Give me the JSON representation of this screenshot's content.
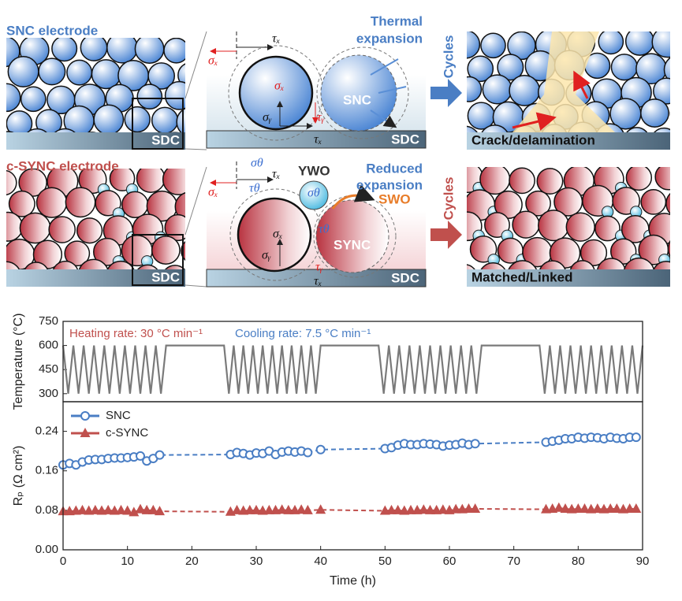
{
  "diagram": {
    "snc_electrode": "SNC electrode",
    "csync_electrode": "c-SYNC electrode",
    "sdc": [
      "SDC",
      "SDC",
      "SDC",
      "SDC"
    ],
    "thermal_expansion": [
      "Thermal",
      "expansion"
    ],
    "reduced_expansion": [
      "Reduced",
      "expansion"
    ],
    "snc": "SNC",
    "sync": "SYNC",
    "ywo": "YWO",
    "swo": "SWO",
    "cycles": [
      "Cycles",
      "Cycles"
    ],
    "crack": "Crack/delamination",
    "matched": "Matched/Linked",
    "symbols_top": [
      "σₓ",
      "τₓ",
      "σₓ",
      "σᵧ",
      "τᵧ",
      "τₓ"
    ],
    "symbols_bottom": [
      "σθ",
      "τθ",
      "σₓ",
      "τₓ",
      "σθ",
      "σₓ",
      "σᵧ",
      "τθ",
      "τᵧ",
      "τₓ"
    ]
  },
  "chart_data": [
    {
      "type": "line",
      "ylabel": "Temperature (°C)",
      "xlim": [
        0,
        90
      ],
      "ylim": [
        250,
        750
      ],
      "yticks": [
        300,
        450,
        600,
        750
      ],
      "annotations": [
        {
          "text": "Heating rate: 30 °C min⁻¹",
          "color": "#c0504d"
        },
        {
          "text": "Cooling rate: 7.5 °C min⁻¹",
          "color": "#4a7ec4"
        }
      ],
      "series": [
        {
          "color": "#7a7a7a",
          "x": [
            0,
            0.8,
            1.6,
            2.4,
            3.2,
            4,
            4.8,
            5.6,
            6.4,
            7.2,
            8,
            8.8,
            9.6,
            10.4,
            11.2,
            12,
            12.8,
            13.6,
            14.4,
            15.2,
            16,
            25,
            25.75,
            26.5,
            27.25,
            28,
            28.75,
            29.5,
            30.25,
            31,
            31.75,
            32.5,
            33.25,
            34,
            34.75,
            35.5,
            36.25,
            37,
            37.75,
            38.5,
            39.25,
            40,
            49,
            49.8,
            50.6,
            51.4,
            52.2,
            53,
            53.8,
            54.6,
            55.4,
            56.2,
            57,
            57.8,
            58.6,
            59.4,
            60.2,
            61,
            61.8,
            62.6,
            63.4,
            64.2,
            65,
            74,
            74.8,
            75.6,
            76.4,
            77.2,
            78,
            78.8,
            79.6,
            80.4,
            81.2,
            82,
            82.8,
            83.6,
            84.4,
            85.2,
            86,
            86.8,
            87.6,
            88.4,
            89.2,
            90
          ],
          "values": [
            600,
            300,
            600,
            300,
            600,
            300,
            600,
            300,
            600,
            300,
            600,
            300,
            600,
            300,
            600,
            300,
            600,
            300,
            600,
            300,
            600,
            600,
            300,
            600,
            300,
            600,
            300,
            600,
            300,
            600,
            300,
            600,
            300,
            600,
            300,
            600,
            300,
            600,
            300,
            600,
            300,
            600,
            600,
            300,
            600,
            300,
            600,
            300,
            600,
            300,
            600,
            300,
            600,
            300,
            600,
            300,
            600,
            300,
            600,
            300,
            600,
            300,
            600,
            600,
            300,
            600,
            300,
            600,
            300,
            600,
            300,
            600,
            300,
            600,
            300,
            600,
            300,
            600,
            300,
            600,
            300,
            600,
            300,
            600
          ]
        }
      ]
    },
    {
      "type": "line",
      "xlabel": "Time (h)",
      "ylabel": "Rₚ (Ω cm²)",
      "xlim": [
        0,
        90
      ],
      "xticks": [
        0,
        10,
        20,
        30,
        40,
        50,
        60,
        70,
        80,
        90
      ],
      "ylim": [
        0,
        0.3
      ],
      "yticks": [
        {
          "value": 0,
          "label": "0.00"
        },
        0.08,
        0.16,
        0.24
      ],
      "legend": "upper left",
      "series": [
        {
          "name": "SNC",
          "color": "#4a7ec4",
          "marker": "circle",
          "linestyle": "dashed",
          "x": [
            0,
            1,
            2,
            3,
            4,
            5,
            6,
            7,
            8,
            9,
            10,
            11,
            12,
            13,
            14,
            15,
            26,
            27,
            28,
            29,
            30,
            31,
            32,
            33,
            34,
            35,
            36,
            37,
            38,
            40,
            50,
            51,
            52,
            53,
            54,
            55,
            56,
            57,
            58,
            59,
            60,
            61,
            62,
            63,
            64,
            75,
            76,
            77,
            78,
            79,
            80,
            81,
            82,
            83,
            84,
            85,
            86,
            87,
            88,
            89
          ],
          "values": [
            0.172,
            0.175,
            0.172,
            0.178,
            0.182,
            0.183,
            0.183,
            0.185,
            0.186,
            0.186,
            0.187,
            0.188,
            0.19,
            0.18,
            0.185,
            0.192,
            0.193,
            0.197,
            0.195,
            0.192,
            0.196,
            0.195,
            0.2,
            0.193,
            0.198,
            0.2,
            0.198,
            0.2,
            0.197,
            0.203,
            0.205,
            0.207,
            0.212,
            0.215,
            0.213,
            0.213,
            0.215,
            0.214,
            0.213,
            0.21,
            0.212,
            0.213,
            0.216,
            0.213,
            0.215,
            0.218,
            0.22,
            0.222,
            0.225,
            0.225,
            0.228,
            0.226,
            0.228,
            0.227,
            0.225,
            0.228,
            0.226,
            0.225,
            0.228,
            0.228
          ]
        },
        {
          "name": "c-SYNC",
          "color": "#c0504d",
          "marker": "triangle",
          "linestyle": "dashed",
          "x": [
            0,
            1,
            2,
            3,
            4,
            5,
            6,
            7,
            8,
            9,
            10,
            11,
            12,
            13,
            14,
            15,
            26,
            27,
            28,
            29,
            30,
            31,
            32,
            33,
            34,
            35,
            36,
            37,
            38,
            40,
            50,
            51,
            52,
            53,
            54,
            55,
            56,
            57,
            58,
            59,
            60,
            61,
            62,
            63,
            64,
            75,
            76,
            77,
            78,
            79,
            80,
            81,
            82,
            83,
            84,
            85,
            86,
            87,
            88,
            89
          ],
          "values": [
            0.078,
            0.078,
            0.079,
            0.08,
            0.079,
            0.08,
            0.079,
            0.08,
            0.079,
            0.08,
            0.079,
            0.076,
            0.082,
            0.08,
            0.08,
            0.078,
            0.077,
            0.08,
            0.079,
            0.08,
            0.08,
            0.079,
            0.08,
            0.08,
            0.081,
            0.08,
            0.08,
            0.081,
            0.08,
            0.081,
            0.079,
            0.08,
            0.08,
            0.079,
            0.08,
            0.08,
            0.081,
            0.08,
            0.08,
            0.081,
            0.08,
            0.082,
            0.082,
            0.083,
            0.083,
            0.082,
            0.083,
            0.085,
            0.083,
            0.082,
            0.083,
            0.083,
            0.082,
            0.083,
            0.082,
            0.083,
            0.083,
            0.082,
            0.083,
            0.083
          ]
        }
      ]
    }
  ]
}
